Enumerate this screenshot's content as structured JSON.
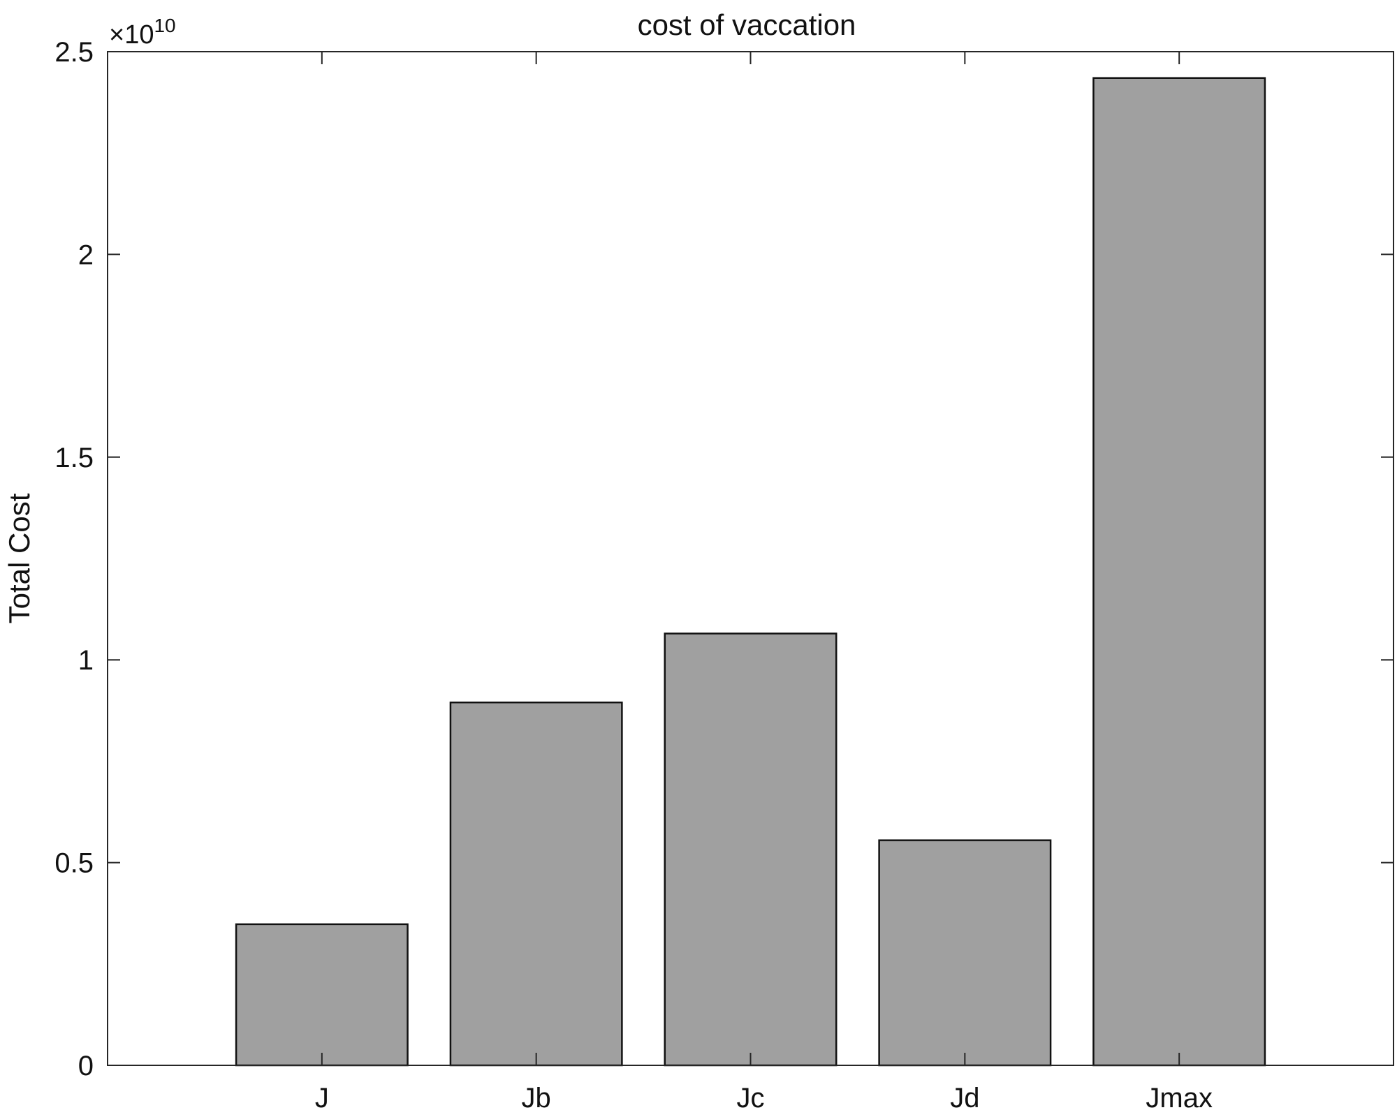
{
  "chart_data": {
    "type": "bar",
    "title": "cost of vaccation",
    "xlabel": "",
    "ylabel": "Total Cost",
    "categories": [
      "J",
      "Jb",
      "Jc",
      "Jd",
      "Jmax"
    ],
    "values": [
      3480000000,
      8950000000,
      10650000000,
      5550000000,
      24350000000
    ],
    "ylim": [
      0,
      25000000000
    ],
    "xlim": [
      0,
      6
    ],
    "yticks": [
      0,
      5000000000,
      10000000000,
      15000000000,
      20000000000,
      25000000000
    ],
    "ytick_labels": [
      "0",
      "0.5",
      "1",
      "1.5",
      "2",
      "2.5"
    ],
    "y_exponent_base": "×10",
    "y_exponent_power": "10",
    "bar_color": "#a0a0a0",
    "bar_edge_color": "#111111",
    "grid": false,
    "box": true
  }
}
